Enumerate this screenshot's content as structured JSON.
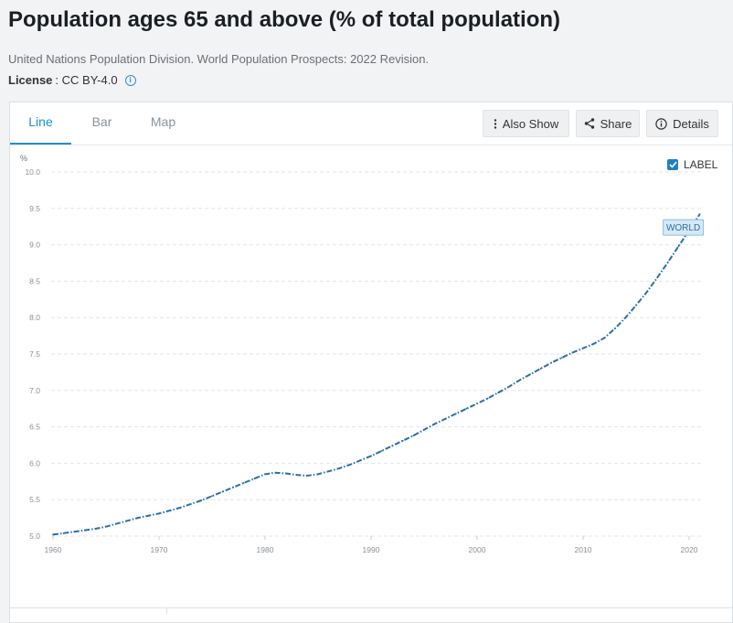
{
  "header": {
    "title": "Population ages 65 and above (% of total population)",
    "source": "United Nations Population Division. World Population Prospects: 2022 Revision.",
    "license_label": "License",
    "license_value": ": CC BY-4.0"
  },
  "tabs": [
    {
      "label": "Line",
      "active": true
    },
    {
      "label": "Bar",
      "active": false
    },
    {
      "label": "Map",
      "active": false
    }
  ],
  "toolbar": {
    "also_show": "Also Show",
    "share": "Share",
    "details": "Details"
  },
  "label_toggle": {
    "text": "LABEL",
    "checked": true
  },
  "colors": {
    "accent": "#1f8fd6",
    "series": "#2a6fa8",
    "label_bg": "#d6e8f5"
  },
  "chart_data": {
    "type": "line",
    "ylabel": "%",
    "ylim": [
      5.0,
      10.0
    ],
    "yticks": [
      "5.0",
      "5.5",
      "6.0",
      "6.5",
      "7.0",
      "7.5",
      "8.0",
      "8.5",
      "9.0",
      "9.5",
      "10.0"
    ],
    "xlim": [
      1960,
      2021
    ],
    "xticks": [
      "1960",
      "1970",
      "1980",
      "1990",
      "2000",
      "2010",
      "2020"
    ],
    "grid": true,
    "series": [
      {
        "name": "WORLD",
        "x": [
          1960,
          1961,
          1962,
          1963,
          1964,
          1965,
          1966,
          1967,
          1968,
          1969,
          1970,
          1971,
          1972,
          1973,
          1974,
          1975,
          1976,
          1977,
          1978,
          1979,
          1980,
          1981,
          1982,
          1983,
          1984,
          1985,
          1986,
          1987,
          1988,
          1989,
          1990,
          1991,
          1992,
          1993,
          1994,
          1995,
          1996,
          1997,
          1998,
          1999,
          2000,
          2001,
          2002,
          2003,
          2004,
          2005,
          2006,
          2007,
          2008,
          2009,
          2010,
          2011,
          2012,
          2013,
          2014,
          2015,
          2016,
          2017,
          2018,
          2019,
          2020,
          2021
        ],
        "values": [
          5.02,
          5.04,
          5.06,
          5.08,
          5.1,
          5.13,
          5.17,
          5.21,
          5.25,
          5.28,
          5.31,
          5.35,
          5.39,
          5.44,
          5.49,
          5.55,
          5.61,
          5.67,
          5.73,
          5.79,
          5.85,
          5.87,
          5.86,
          5.84,
          5.83,
          5.85,
          5.89,
          5.93,
          5.98,
          6.04,
          6.1,
          6.17,
          6.24,
          6.31,
          6.38,
          6.46,
          6.54,
          6.61,
          6.68,
          6.75,
          6.82,
          6.89,
          6.97,
          7.05,
          7.14,
          7.22,
          7.3,
          7.38,
          7.45,
          7.52,
          7.58,
          7.64,
          7.72,
          7.85,
          8.0,
          8.17,
          8.35,
          8.55,
          8.76,
          8.98,
          9.2,
          9.42
        ]
      }
    ]
  }
}
